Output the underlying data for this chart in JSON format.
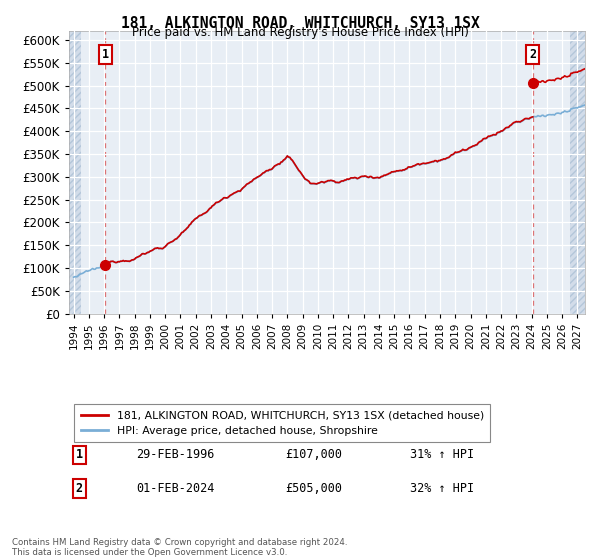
{
  "title": "181, ALKINGTON ROAD, WHITCHURCH, SY13 1SX",
  "subtitle": "Price paid vs. HM Land Registry's House Price Index (HPI)",
  "legend_line1": "181, ALKINGTON ROAD, WHITCHURCH, SY13 1SX (detached house)",
  "legend_line2": "HPI: Average price, detached house, Shropshire",
  "footnote": "Contains HM Land Registry data © Crown copyright and database right 2024.\nThis data is licensed under the Open Government Licence v3.0.",
  "sale1_label": "1",
  "sale1_date": "29-FEB-1996",
  "sale1_price": 107000,
  "sale1_hpi": "31% ↑ HPI",
  "sale2_label": "2",
  "sale2_date": "01-FEB-2024",
  "sale2_price": 505000,
  "sale2_hpi": "32% ↑ HPI",
  "property_color": "#cc0000",
  "hpi_color": "#7aaed6",
  "background_plot": "#e8eef5",
  "ylim": [
    0,
    620000
  ],
  "yticks": [
    0,
    50000,
    100000,
    150000,
    200000,
    250000,
    300000,
    350000,
    400000,
    450000,
    500000,
    550000,
    600000
  ],
  "xlim_start": 1993.7,
  "xlim_end": 2027.5,
  "xticks": [
    1994,
    1995,
    1996,
    1997,
    1998,
    1999,
    2000,
    2001,
    2002,
    2003,
    2004,
    2005,
    2006,
    2007,
    2008,
    2009,
    2010,
    2011,
    2012,
    2013,
    2014,
    2015,
    2016,
    2017,
    2018,
    2019,
    2020,
    2021,
    2022,
    2023,
    2024,
    2025,
    2026,
    2027
  ]
}
